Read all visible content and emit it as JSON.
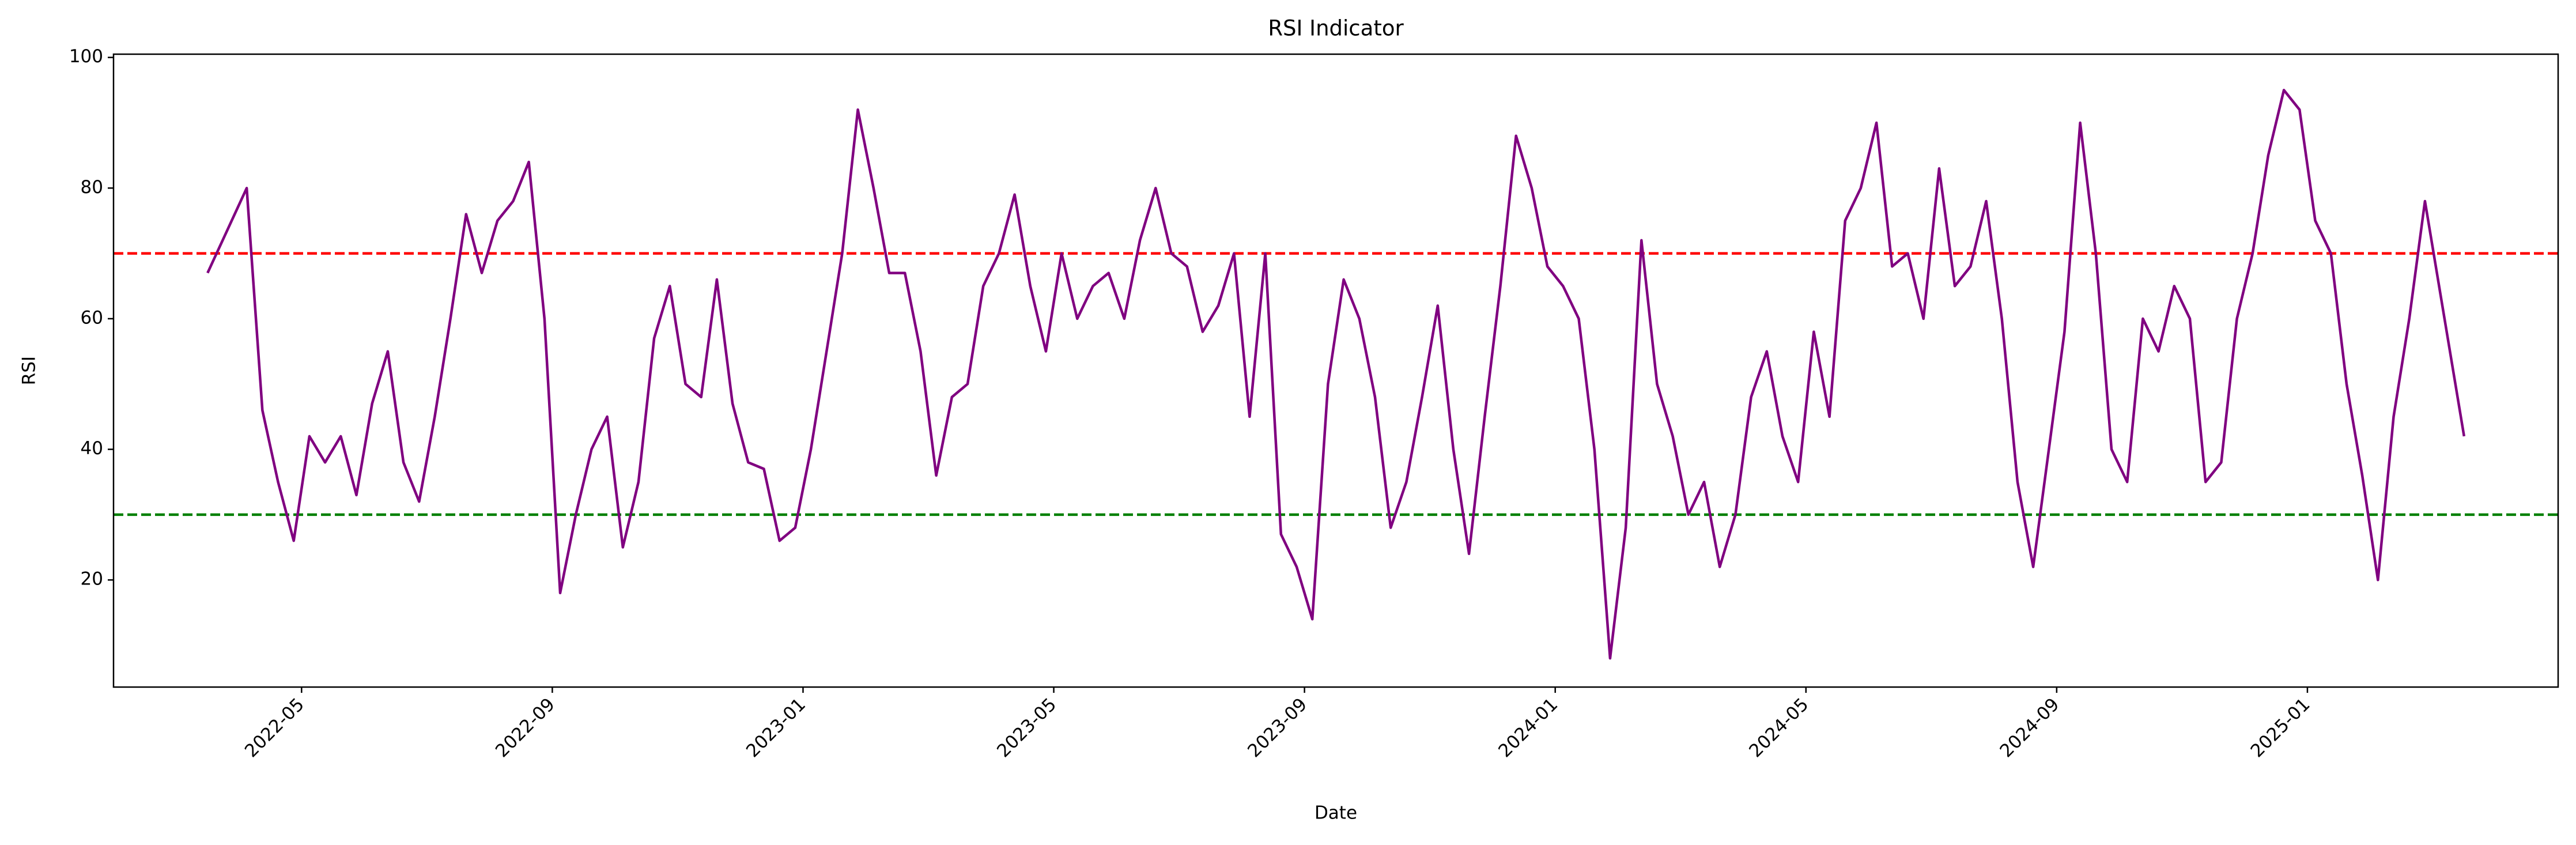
{
  "chart_data": {
    "type": "line",
    "title": "RSI Indicator",
    "x_label": "Date",
    "y_label": "RSI",
    "x": [
      "2022-03",
      "2022-04",
      "2022-04",
      "2022-04",
      "2022-04",
      "2022-05",
      "2022-05",
      "2022-05",
      "2022-05",
      "2022-06",
      "2022-06",
      "2022-06",
      "2022-06",
      "2022-07",
      "2022-07",
      "2022-07",
      "2022-07",
      "2022-08",
      "2022-08",
      "2022-08",
      "2022-08",
      "2022-09",
      "2022-09",
      "2022-09",
      "2022-09",
      "2022-10",
      "2022-10",
      "2022-10",
      "2022-10",
      "2022-11",
      "2022-11",
      "2022-11",
      "2022-11",
      "2022-12",
      "2022-12",
      "2022-12",
      "2022-12",
      "2023-01",
      "2023-01",
      "2023-01",
      "2023-01",
      "2023-02",
      "2023-02",
      "2023-02",
      "2023-02",
      "2023-03",
      "2023-03",
      "2023-03",
      "2023-03",
      "2023-04",
      "2023-04",
      "2023-04",
      "2023-04",
      "2023-05",
      "2023-05",
      "2023-05",
      "2023-05",
      "2023-06",
      "2023-06",
      "2023-06",
      "2023-06",
      "2023-07",
      "2023-07",
      "2023-07",
      "2023-07",
      "2023-08",
      "2023-08",
      "2023-08",
      "2023-08",
      "2023-09",
      "2023-09",
      "2023-09",
      "2023-09",
      "2023-10",
      "2023-10",
      "2023-10",
      "2023-10",
      "2023-11",
      "2023-11",
      "2023-11",
      "2023-11",
      "2023-12",
      "2023-12",
      "2023-12",
      "2023-12",
      "2024-01",
      "2024-01",
      "2024-01",
      "2024-01",
      "2024-02",
      "2024-02",
      "2024-02",
      "2024-02",
      "2024-03",
      "2024-03",
      "2024-03",
      "2024-03",
      "2024-04",
      "2024-04",
      "2024-04",
      "2024-04",
      "2024-05",
      "2024-05",
      "2024-05",
      "2024-05",
      "2024-06",
      "2024-06",
      "2024-06",
      "2024-06",
      "2024-07",
      "2024-07",
      "2024-07",
      "2024-07",
      "2024-08",
      "2024-08",
      "2024-08",
      "2024-08",
      "2024-09",
      "2024-09",
      "2024-09",
      "2024-09",
      "2024-10",
      "2024-10",
      "2024-10",
      "2024-10",
      "2024-11",
      "2024-11",
      "2024-11",
      "2024-11",
      "2024-12",
      "2024-12",
      "2024-12",
      "2024-12",
      "2025-01",
      "2025-01",
      "2025-01",
      "2025-01",
      "2025-02",
      "2025-02",
      "2025-02",
      "2025-02",
      "2025-03"
    ],
    "series": [
      {
        "name": "RSI",
        "color": "#800080",
        "values": [
          67,
          80,
          46,
          35,
          26,
          42,
          38,
          42,
          33,
          47,
          55,
          38,
          32,
          45,
          60,
          76,
          67,
          75,
          78,
          84,
          60,
          18,
          30,
          40,
          45,
          25,
          35,
          57,
          65,
          50,
          48,
          66,
          47,
          38,
          37,
          26,
          28,
          40,
          55,
          70,
          92,
          80,
          67,
          67,
          55,
          36,
          48,
          50,
          65,
          70,
          79,
          65,
          55,
          70,
          60,
          65,
          67,
          60,
          72,
          80,
          70,
          68,
          58,
          62,
          70,
          45,
          70,
          27,
          22,
          14,
          50,
          66,
          60,
          48,
          28,
          35,
          48,
          62,
          40,
          24,
          45,
          65,
          88,
          80,
          68,
          65,
          60,
          40,
          8,
          28,
          72,
          50,
          42,
          30,
          35,
          22,
          30,
          48,
          55,
          42,
          35,
          58,
          45,
          75,
          80,
          90,
          68,
          70,
          60,
          83,
          65,
          68,
          78,
          60,
          35,
          22,
          40,
          58,
          90,
          70,
          40,
          35,
          60,
          55,
          65,
          60,
          35,
          38,
          60,
          70,
          85,
          95,
          92,
          75,
          70,
          50,
          36,
          20,
          45,
          60,
          78,
          42
        ]
      }
    ],
    "reference_lines": [
      {
        "value": 70,
        "color": "#ff0000"
      },
      {
        "value": 30,
        "color": "#008000"
      }
    ],
    "xlim": [
      "2022-02",
      "2025-05"
    ],
    "xticks": [
      "2022-05",
      "2022-09",
      "2023-01",
      "2023-05",
      "2023-09",
      "2024-01",
      "2024-05",
      "2024-09",
      "2025-01"
    ],
    "ylim": [
      3.6,
      100.5
    ],
    "yticks": [
      20,
      40,
      60,
      80,
      100
    ]
  }
}
